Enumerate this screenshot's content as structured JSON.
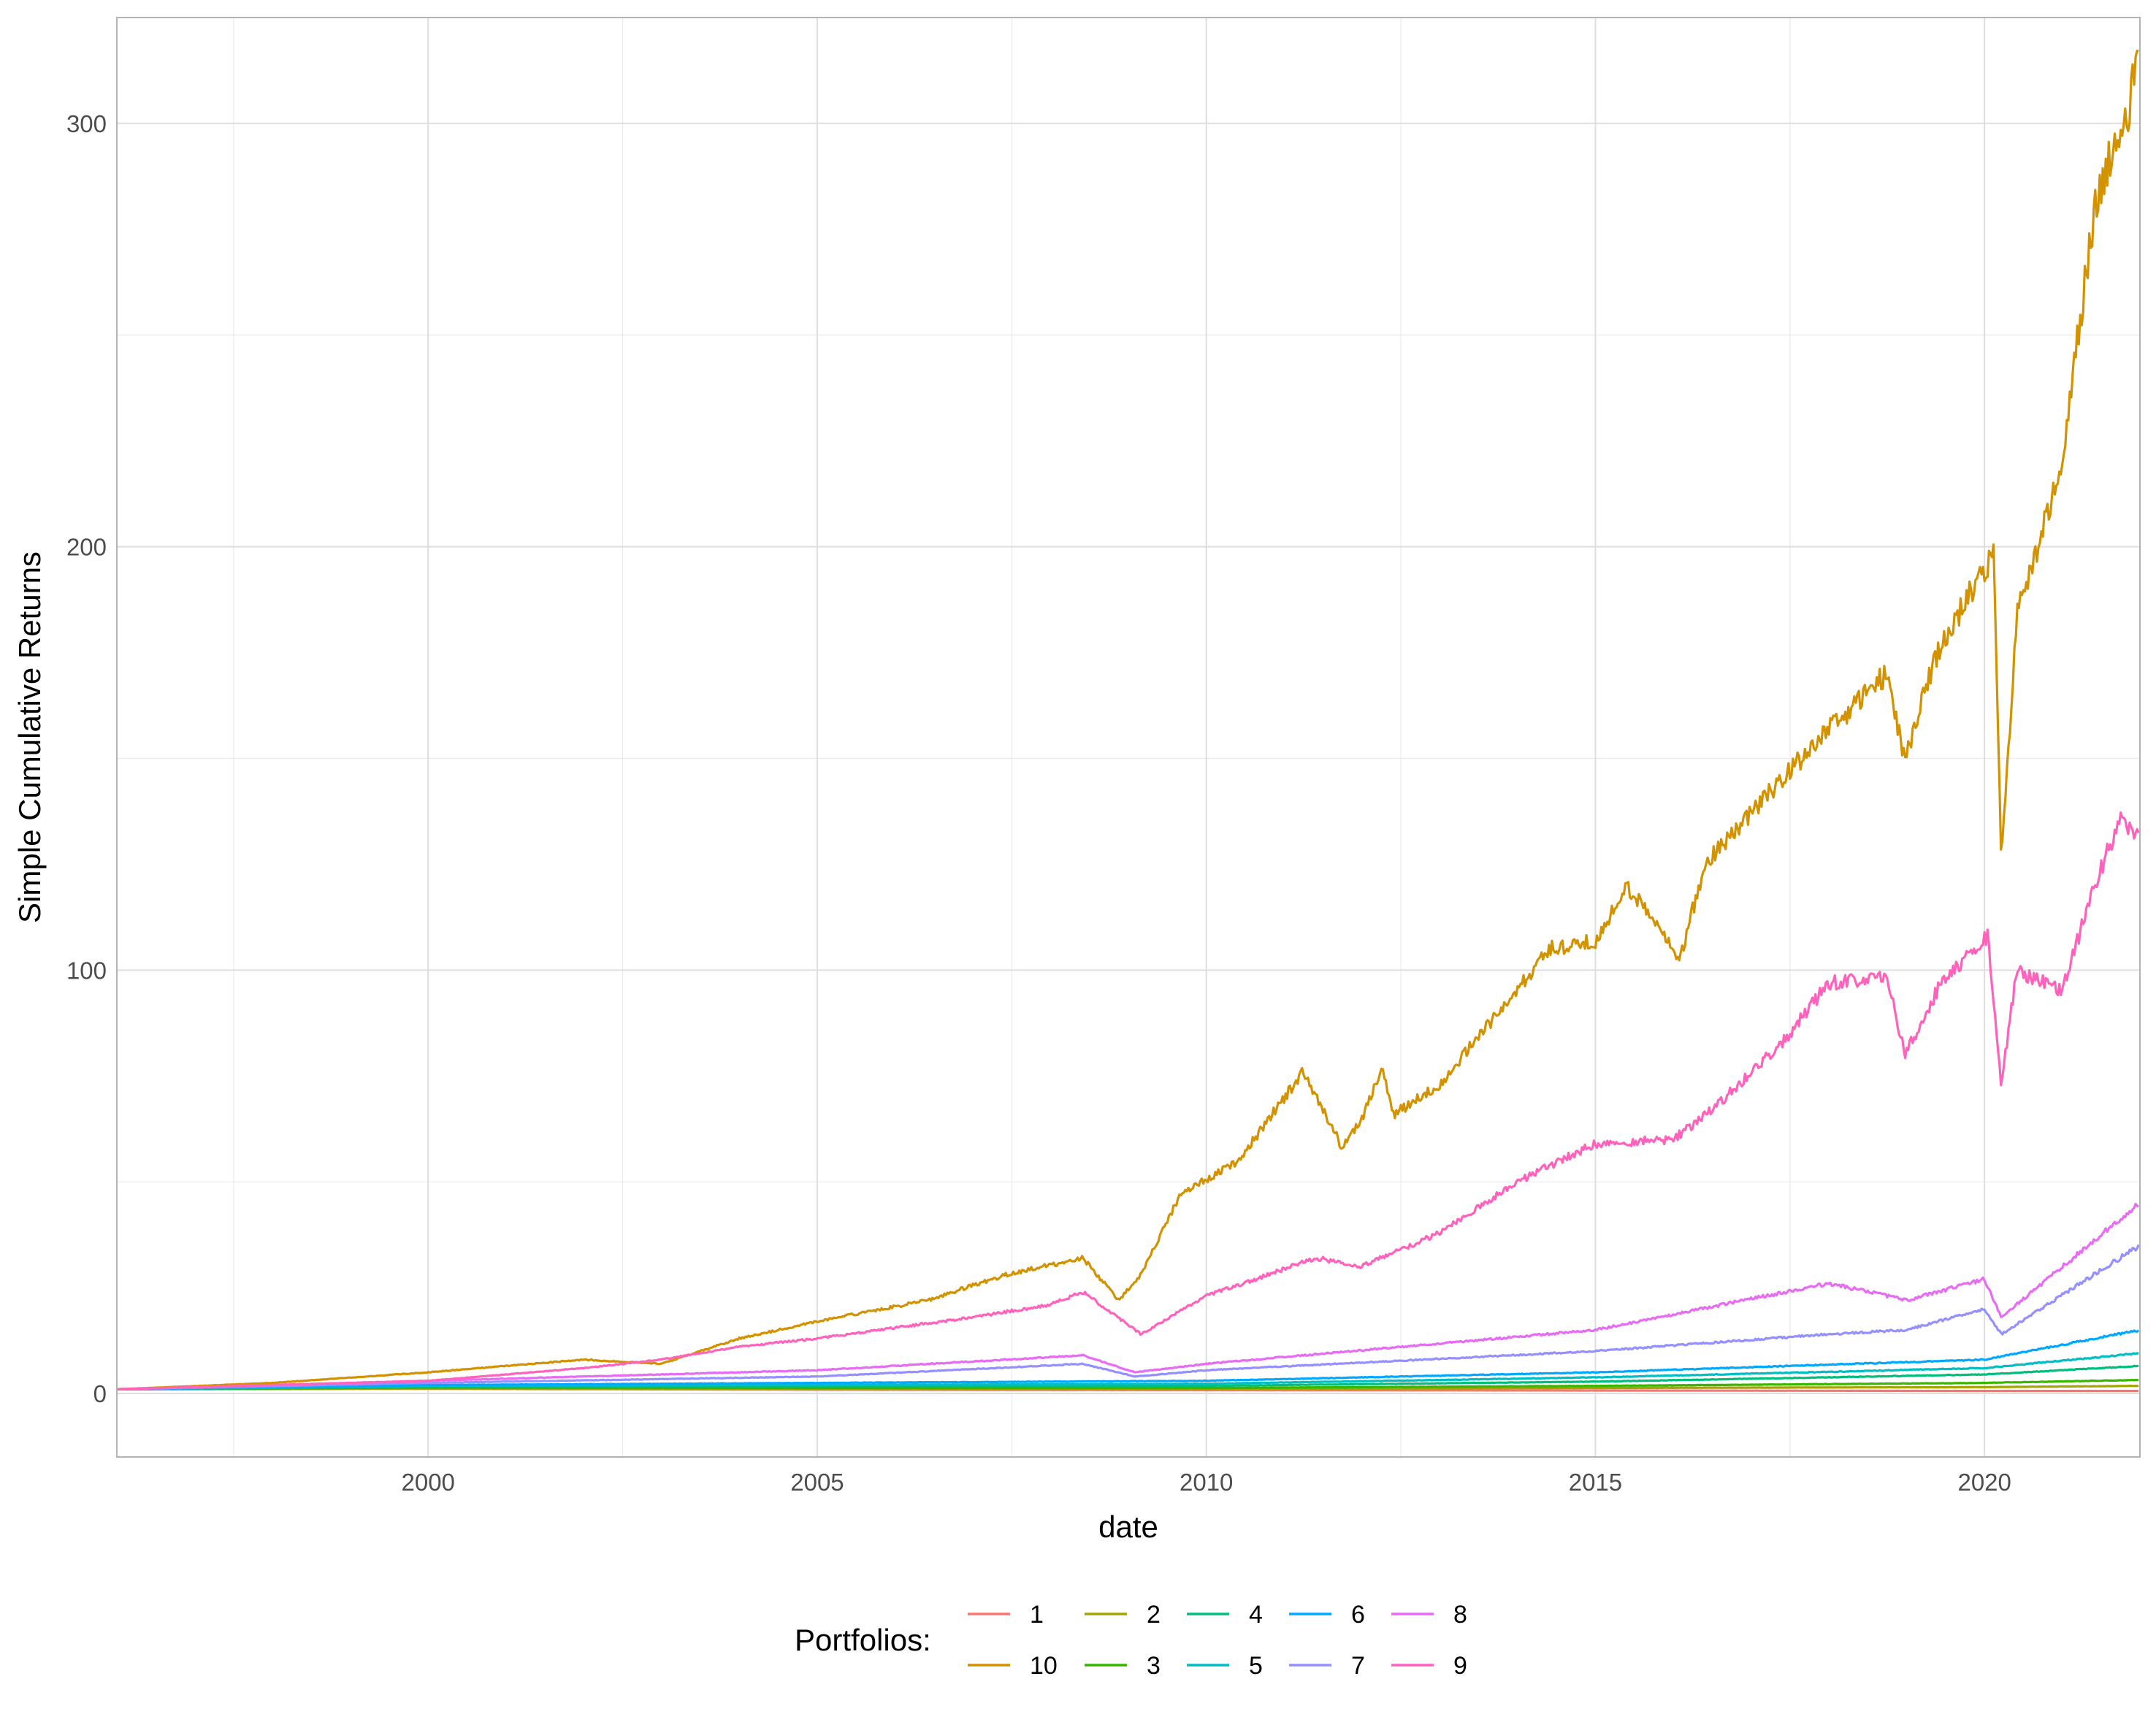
{
  "chart_data": {
    "type": "line",
    "xlabel": "date",
    "ylabel": "Simple Cumulative Returns",
    "xlim": [
      "1996-01-01",
      "2021-12-31"
    ],
    "ylim": [
      -15,
      325
    ],
    "x_ticks": [
      "2000",
      "2005",
      "2010",
      "2015",
      "2020"
    ],
    "y_ticks": [
      0,
      100,
      200,
      300
    ],
    "grid": true,
    "legend": {
      "title": "Portfolios:",
      "position": "bottom"
    },
    "series": [
      {
        "name": "1",
        "color": "#F8766D",
        "x": [
          "1996-01-01",
          "2000-01-01",
          "2005-01-01",
          "2010-01-01",
          "2015-01-01",
          "2020-01-01",
          "2021-12-31"
        ],
        "values": [
          1.0,
          1.1,
          0.9,
          0.8,
          0.7,
          0.6,
          0.6
        ]
      },
      {
        "name": "2",
        "color": "#A3A500",
        "x": [
          "1996-01-01",
          "2000-01-01",
          "2005-01-01",
          "2010-01-01",
          "2015-01-01",
          "2020-01-01",
          "2021-12-31"
        ],
        "values": [
          1.0,
          1.2,
          1.1,
          1.1,
          1.3,
          1.5,
          1.8
        ]
      },
      {
        "name": "3",
        "color": "#39B600",
        "x": [
          "1996-01-01",
          "2000-01-01",
          "2005-01-01",
          "2010-01-01",
          "2015-01-01",
          "2020-01-01",
          "2021-12-31"
        ],
        "values": [
          1.0,
          1.4,
          1.3,
          1.3,
          1.8,
          2.5,
          3.2
        ]
      },
      {
        "name": "4",
        "color": "#00BF7D",
        "x": [
          "1996-01-01",
          "2000-01-01",
          "2005-01-01",
          "2010-01-01",
          "2015-01-01",
          "2020-01-01",
          "2021-12-31"
        ],
        "values": [
          1.0,
          1.6,
          1.6,
          1.8,
          2.8,
          4.5,
          6.5
        ]
      },
      {
        "name": "5",
        "color": "#00BFC4",
        "x": [
          "1996-01-01",
          "2000-01-01",
          "2005-01-01",
          "2010-01-01",
          "2015-01-01",
          "2020-01-01",
          "2021-12-31"
        ],
        "values": [
          1.0,
          1.8,
          2.0,
          2.3,
          3.8,
          6.0,
          9.5
        ]
      },
      {
        "name": "6",
        "color": "#00A9FF",
        "x": [
          "1996-01-01",
          "2000-01-01",
          "2005-01-01",
          "2010-01-01",
          "2015-01-01",
          "2020-01-01",
          "2021-12-31"
        ],
        "values": [
          1.0,
          2.0,
          2.5,
          3.0,
          5.0,
          8.0,
          15.0
        ]
      },
      {
        "name": "7",
        "color": "#9590FF",
        "x": [
          "1996-01-01",
          "2000-01-01",
          "2005-01-01",
          "2008-06-01",
          "2009-02-01",
          "2010-01-01",
          "2015-01-01",
          "2018-01-01",
          "2019-01-01",
          "2020-01-01",
          "2020-03-20",
          "2021-12-31"
        ],
        "values": [
          1.0,
          2.5,
          4.0,
          7.0,
          4.0,
          5.5,
          10.0,
          14.0,
          15.0,
          20.0,
          14.0,
          35.0
        ]
      },
      {
        "name": "8",
        "color": "#E76BF3",
        "x": [
          "1996-01-01",
          "2000-01-01",
          "2005-01-01",
          "2008-06-01",
          "2009-02-01",
          "2010-01-01",
          "2015-01-01",
          "2018-01-01",
          "2019-01-01",
          "2020-01-01",
          "2020-03-20",
          "2021-12-31"
        ],
        "values": [
          1.0,
          3.0,
          5.5,
          9.0,
          5.0,
          7.0,
          15.0,
          26.0,
          22.0,
          27.0,
          18.0,
          45.0
        ]
      },
      {
        "name": "9",
        "color": "#FF62BC",
        "x": [
          "1996-01-01",
          "1998-01-01",
          "2000-01-01",
          "2002-01-01",
          "2003-01-01",
          "2004-01-01",
          "2005-01-01",
          "2007-01-01",
          "2008-01-01",
          "2008-06-01",
          "2009-03-01",
          "2010-01-01",
          "2011-06-01",
          "2012-01-01",
          "2013-01-01",
          "2014-01-01",
          "2015-01-01",
          "2016-01-01",
          "2016-07-01",
          "2017-06-01",
          "2018-01-01",
          "2018-10-01",
          "2018-12-25",
          "2019-06-01",
          "2020-01-15",
          "2020-03-20",
          "2020-06-01",
          "2021-01-01",
          "2021-06-01",
          "2021-10-01",
          "2021-12-31"
        ],
        "values": [
          1.0,
          2.0,
          3.0,
          6.0,
          8.0,
          11.0,
          13.0,
          18.0,
          21.0,
          24.0,
          14.0,
          23.0,
          32.0,
          30.0,
          38.0,
          50.0,
          59.0,
          60.0,
          67.0,
          83.0,
          97.0,
          98.0,
          80.0,
          96.0,
          108.0,
          73.0,
          100.0,
          95.0,
          120.0,
          136.0,
          131.0
        ]
      },
      {
        "name": "10",
        "color": "#D39200",
        "x": [
          "1996-01-01",
          "1998-01-01",
          "2000-01-01",
          "2001-01-01",
          "2002-01-01",
          "2003-01-01",
          "2004-01-01",
          "2005-01-01",
          "2006-06-01",
          "2007-06-01",
          "2008-06-01",
          "2008-11-15",
          "2009-03-01",
          "2009-09-01",
          "2010-06-01",
          "2011-04-01",
          "2011-10-01",
          "2012-01-01",
          "2012-04-01",
          "2012-06-01",
          "2013-01-01",
          "2014-06-01",
          "2015-01-01",
          "2015-06-01",
          "2016-02-01",
          "2016-06-01",
          "2017-01-01",
          "2018-01-01",
          "2018-10-01",
          "2018-12-25",
          "2019-06-01",
          "2020-02-15",
          "2020-03-20",
          "2020-06-01",
          "2020-09-01",
          "2021-01-01",
          "2021-06-01",
          "2021-09-01",
          "2021-11-01",
          "2021-12-31"
        ],
        "values": [
          1.0,
          2.5,
          5.0,
          6.5,
          8.0,
          7.0,
          13.0,
          17.0,
          22.0,
          28.0,
          32.0,
          22.0,
          28.0,
          47.0,
          55.0,
          76.0,
          58.0,
          65.0,
          77.0,
          66.0,
          73.0,
          105.0,
          107.0,
          120.0,
          103.0,
          125.0,
          137.0,
          157.0,
          170.0,
          150.0,
          176.0,
          199.0,
          124.0,
          185.0,
          198.0,
          220.0,
          280.0,
          295.0,
          300.0,
          320.0
        ]
      }
    ]
  }
}
